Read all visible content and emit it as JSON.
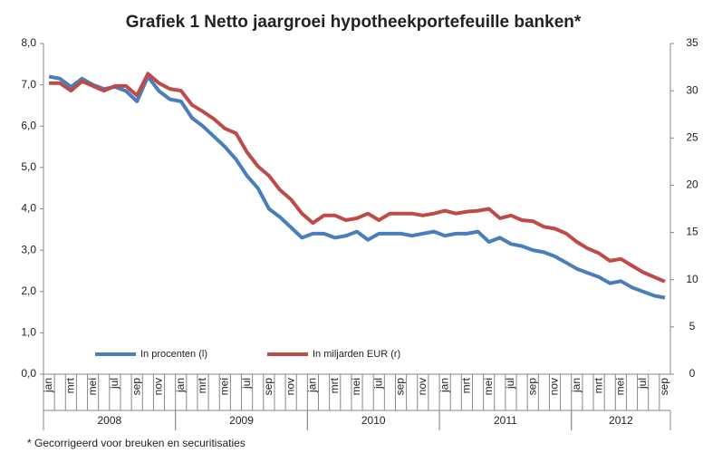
{
  "chart_data": {
    "type": "line",
    "title": "Grafiek 1  Netto jaargroei hypotheekportefeuille banken*",
    "footnote": "* Gecorrigeerd voor breuken en securitisaties",
    "categories": [
      "jan",
      null,
      "mrt",
      null,
      "mei",
      null,
      "jul",
      null,
      "sep",
      null,
      "nov",
      null,
      "jan",
      null,
      "mrt",
      null,
      "mei",
      null,
      "jul",
      null,
      "sep",
      null,
      "nov",
      null,
      "jan",
      null,
      "mrt",
      null,
      "mei",
      null,
      "jul",
      null,
      "sep",
      null,
      "nov",
      null,
      "jan",
      null,
      "mrt",
      null,
      "mei",
      null,
      "jul",
      null,
      "sep",
      null,
      "nov",
      null,
      "jan",
      null,
      "mrt",
      null,
      "mei",
      null,
      "jul",
      null,
      "sep"
    ],
    "year_groups": [
      "2008",
      "2009",
      "2010",
      "2011",
      "2012"
    ],
    "series": [
      {
        "name": "In procenten (l)",
        "color": "#4a7ebb",
        "axis": "y",
        "values": [
          7.2,
          7.15,
          6.95,
          7.15,
          7.0,
          6.9,
          6.95,
          6.85,
          6.6,
          7.2,
          6.85,
          6.65,
          6.6,
          6.2,
          6.0,
          5.75,
          5.5,
          5.2,
          4.8,
          4.5,
          4.0,
          3.8,
          3.55,
          3.3,
          3.4,
          3.4,
          3.3,
          3.35,
          3.45,
          3.25,
          3.4,
          3.4,
          3.4,
          3.35,
          3.4,
          3.45,
          3.35,
          3.4,
          3.4,
          3.45,
          3.2,
          3.3,
          3.15,
          3.1,
          3.0,
          2.95,
          2.85,
          2.7,
          2.55,
          2.45,
          2.35,
          2.2,
          2.25,
          2.1,
          2.0,
          1.9,
          1.85
        ]
      },
      {
        "name": "In miljarden EUR (r)",
        "color": "#be4b48",
        "axis": "y2",
        "values": [
          30.8,
          30.8,
          30.0,
          31.0,
          30.5,
          30.0,
          30.5,
          30.5,
          29.5,
          31.8,
          30.8,
          30.2,
          30.0,
          28.5,
          27.8,
          27.0,
          26.0,
          25.5,
          23.5,
          22.0,
          21.0,
          19.5,
          18.5,
          17.0,
          16.0,
          16.8,
          16.8,
          16.3,
          16.5,
          17.0,
          16.3,
          17.0,
          17.0,
          17.0,
          16.8,
          17.0,
          17.3,
          17.0,
          17.2,
          17.3,
          17.5,
          16.5,
          16.8,
          16.3,
          16.2,
          15.6,
          15.4,
          14.9,
          14.0,
          13.3,
          12.8,
          12.0,
          12.2,
          11.5,
          10.8,
          10.3,
          9.8
        ]
      }
    ],
    "ylim": [
      0,
      8
    ],
    "yticks": [
      {
        "value": 0,
        "label": "0,0"
      },
      {
        "value": 1,
        "label": "1,0"
      },
      {
        "value": 2,
        "label": "2,0"
      },
      {
        "value": 3,
        "label": "3,0"
      },
      {
        "value": 4,
        "label": "4,0"
      },
      {
        "value": 5,
        "label": "5,0"
      },
      {
        "value": 6,
        "label": "6,0"
      },
      {
        "value": 7,
        "label": "7,0"
      },
      {
        "value": 8,
        "label": "8,0"
      }
    ],
    "y2lim": [
      0,
      35
    ],
    "y2ticks": [
      0,
      5,
      10,
      15,
      20,
      25,
      30,
      35
    ],
    "legend": "lower left"
  }
}
